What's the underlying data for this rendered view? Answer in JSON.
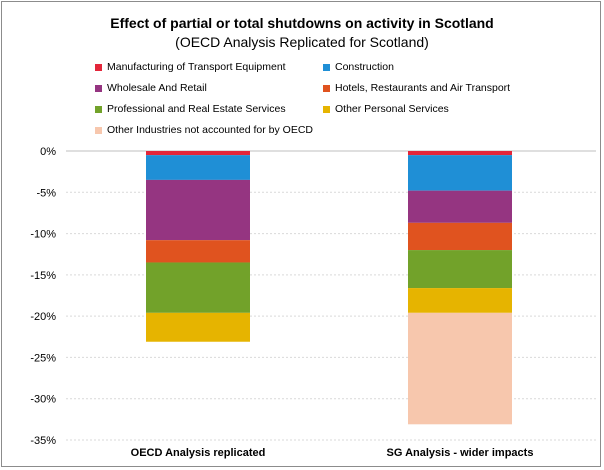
{
  "chart_data": {
    "type": "bar",
    "stacked": true,
    "title": "Effect of partial or total shutdowns on activity in Scotland",
    "subtitle": "(OECD Analysis Replicated for Scotland)",
    "categories": [
      "OECD Analysis replicated",
      "SG Analysis - wider impacts"
    ],
    "series": [
      {
        "name": "Manufacturing of Transport Equipment",
        "color": "#e3263a",
        "values": [
          -0.5,
          -0.5
        ]
      },
      {
        "name": "Construction",
        "color": "#1f8fd6",
        "values": [
          -3.0,
          -4.3
        ]
      },
      {
        "name": "Wholesale And Retail",
        "color": "#953581",
        "values": [
          -7.3,
          -3.9
        ]
      },
      {
        "name": "Hotels, Restaurants and Air Transport",
        "color": "#e0531f",
        "values": [
          -2.7,
          -3.3
        ]
      },
      {
        "name": "Professional  and Real Estate Services",
        "color": "#72a22a",
        "values": [
          -6.1,
          -4.6
        ]
      },
      {
        "name": "Other Personal Services",
        "color": "#e6b400",
        "values": [
          -3.5,
          -3.0
        ]
      },
      {
        "name": "Other Industries not accounted for by OECD",
        "color": "#f7c7ad",
        "values": [
          0,
          -13.5
        ]
      }
    ],
    "yticks": [
      "0%",
      "-5%",
      "-10%",
      "-15%",
      "-20%",
      "-25%",
      "-30%",
      "-35%"
    ],
    "ylim": [
      -35,
      0
    ],
    "grid": true,
    "legend_position": "top"
  }
}
